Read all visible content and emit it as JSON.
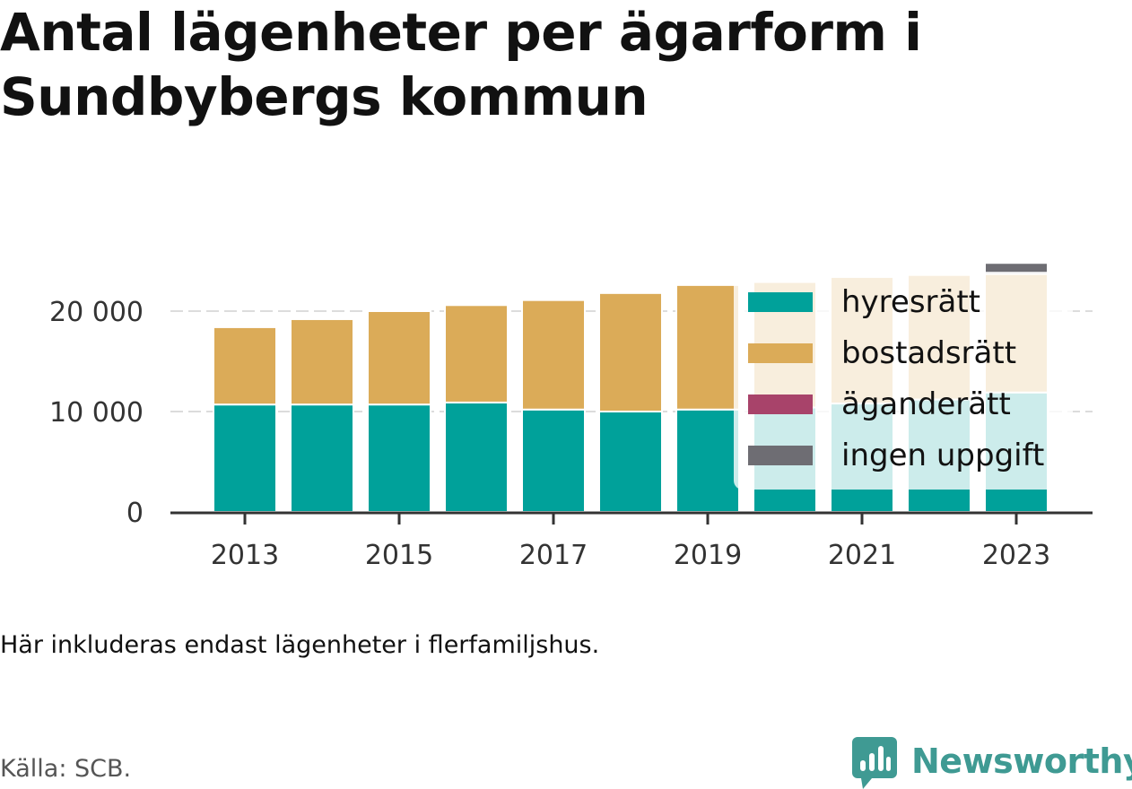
{
  "title": "Antal lägenheter per ägarform i Sundbybergs kommun",
  "note": "Här inkluderas endast lägenheter i flerfamiljshus.",
  "source": "Källa: SCB.",
  "brand": "Newsworthy",
  "colors": {
    "hyresratt": "#00a19a",
    "bostadsratt": "#dbab58",
    "aganderatt": "#a8436a",
    "ingen_uppgift": "#6e6d73",
    "brand": "#3f9a93"
  },
  "chart_data": {
    "type": "bar",
    "stacked": true,
    "categories": [
      "2013",
      "2014",
      "2015",
      "2016",
      "2017",
      "2018",
      "2019",
      "2020",
      "2021",
      "2022",
      "2023"
    ],
    "x_tick_labels": [
      "2013",
      "2015",
      "2017",
      "2019",
      "2021",
      "2023"
    ],
    "series": [
      {
        "name": "hyresrätt",
        "values": [
          10700,
          10700,
          10700,
          10900,
          10200,
          10000,
          10200,
          10400,
          10800,
          11200,
          11900
        ]
      },
      {
        "name": "bostadsrätt",
        "values": [
          7700,
          8500,
          9300,
          9700,
          10900,
          11800,
          12400,
          12500,
          12600,
          12400,
          11800
        ]
      },
      {
        "name": "äganderätt",
        "values": [
          0,
          0,
          0,
          0,
          0,
          0,
          0,
          0,
          0,
          0,
          0
        ]
      },
      {
        "name": "ingen uppgift",
        "values": [
          0,
          0,
          0,
          0,
          0,
          0,
          0,
          0,
          0,
          0,
          1100
        ]
      }
    ],
    "y_ticks": [
      0,
      10000,
      20000
    ],
    "y_tick_labels": [
      "0",
      "10 000",
      "20 000"
    ],
    "ylim": [
      0,
      26500
    ],
    "grid": true,
    "legend_position": "top-right, inside"
  }
}
